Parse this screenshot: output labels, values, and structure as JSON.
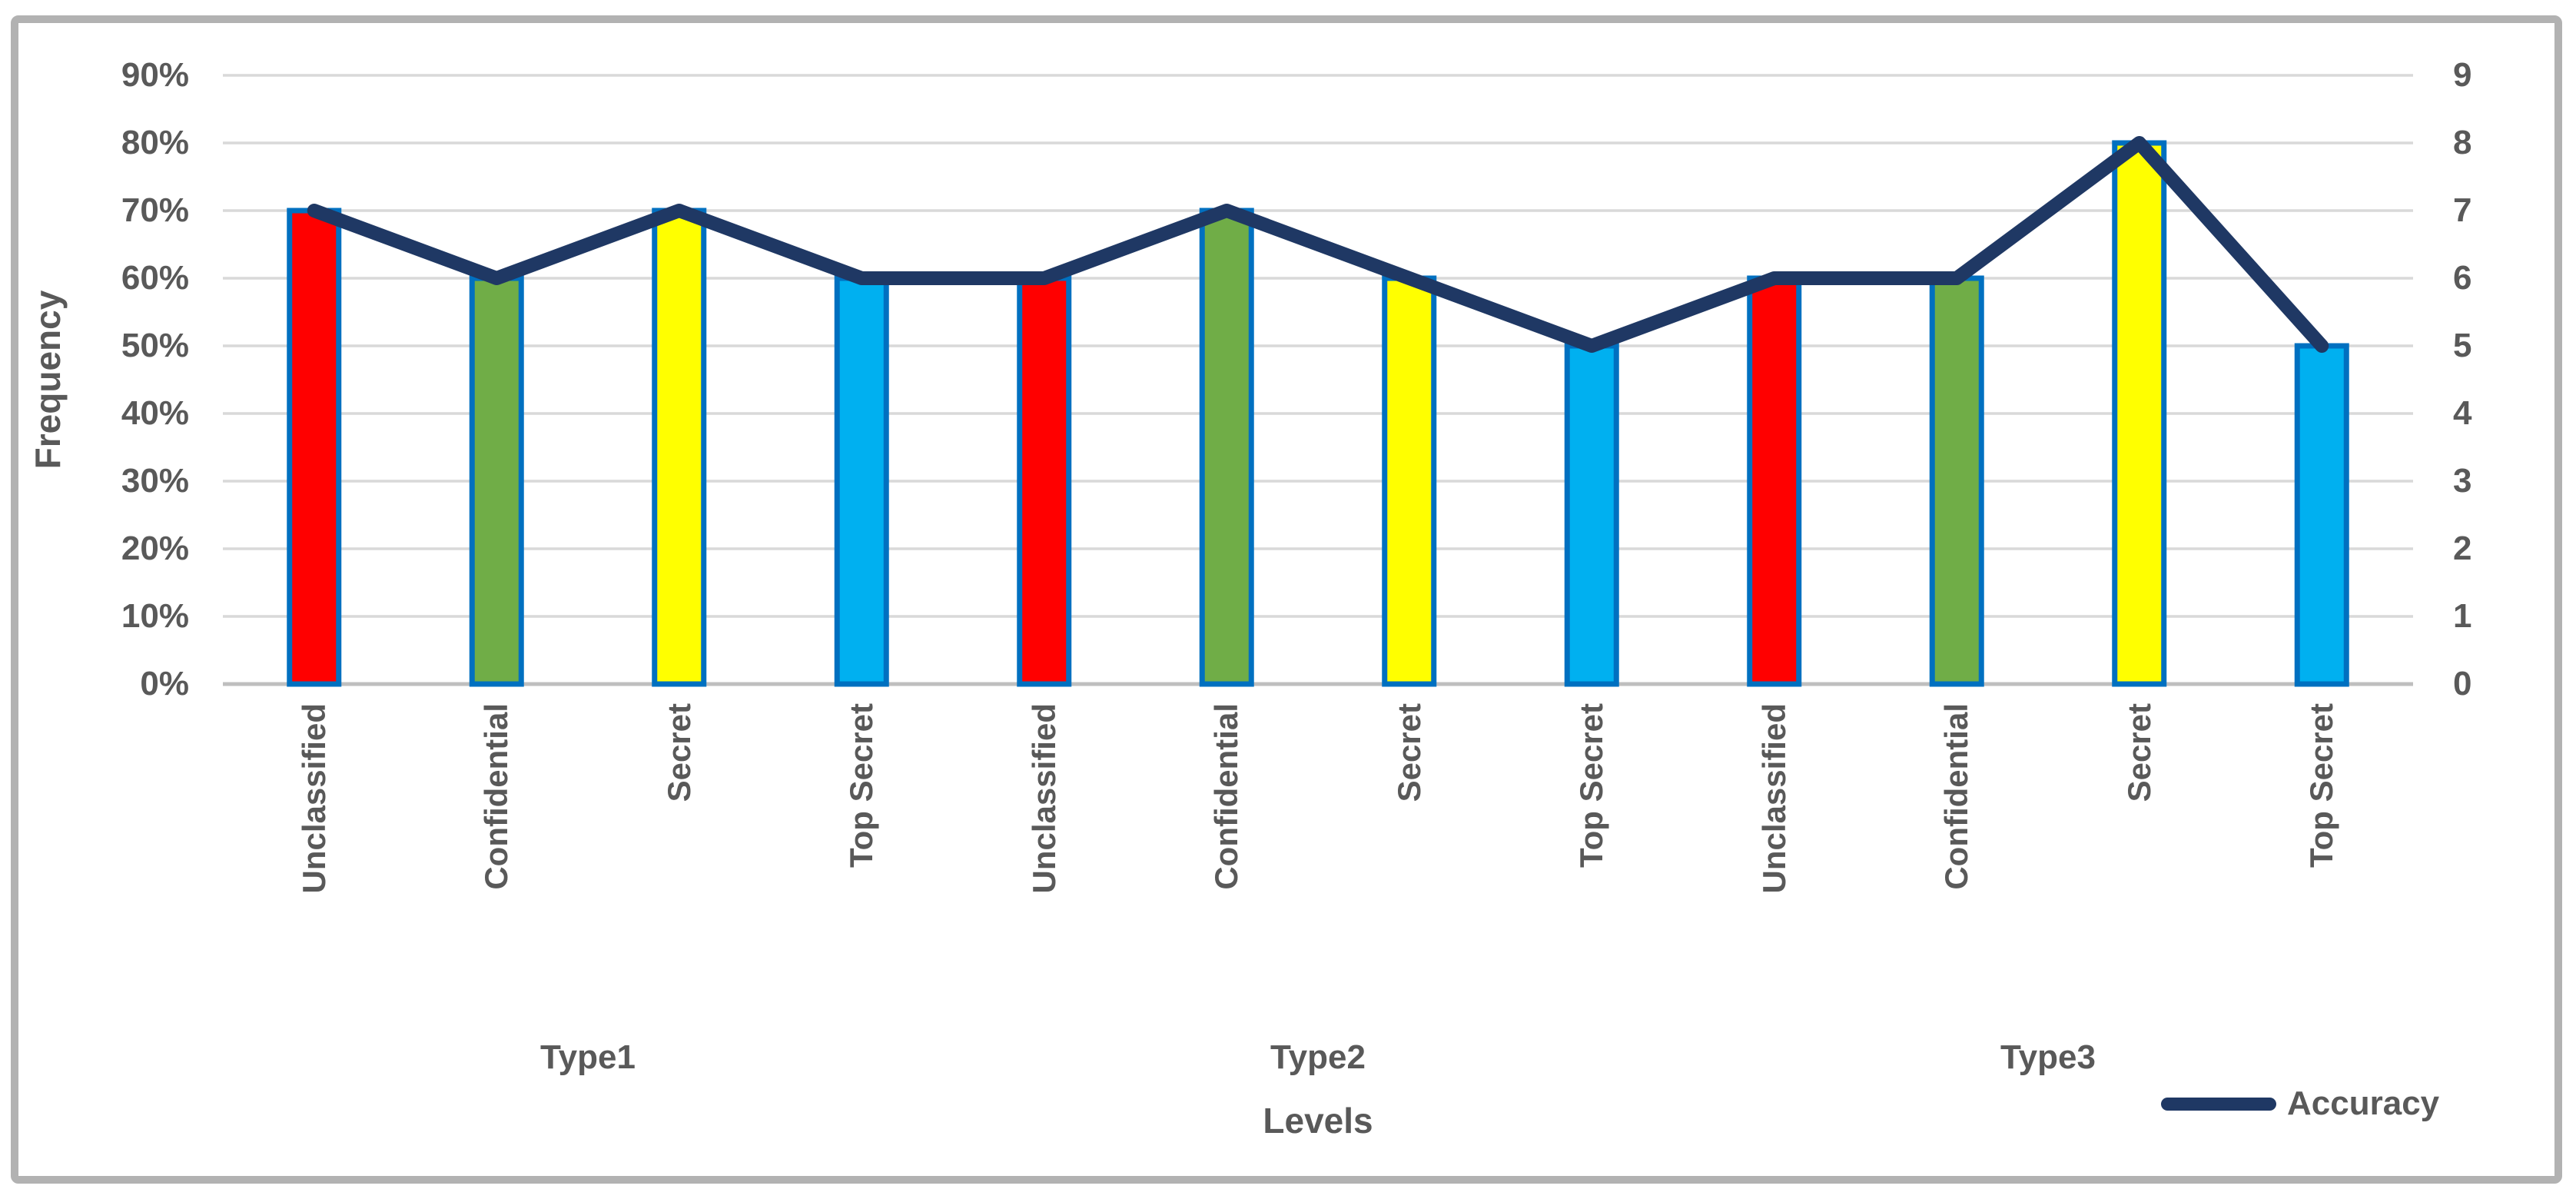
{
  "chart_data": {
    "type": "bar+line",
    "categories": [
      "Unclassified",
      "Confidential",
      "Secret",
      "Top Secret",
      "Unclassified",
      "Confidential",
      "Secret",
      "Top Secret",
      "Unclassified",
      "Confidential",
      "Secret",
      "Top Secret"
    ],
    "category_groups": [
      {
        "label": "Type1"
      },
      {
        "label": "Type2"
      },
      {
        "label": "Type3"
      }
    ],
    "series": [
      {
        "name": "Frequency",
        "type": "bar",
        "axis": "left",
        "values": [
          70,
          60,
          70,
          60,
          60,
          70,
          60,
          50,
          60,
          60,
          80,
          50
        ],
        "unit": "%"
      },
      {
        "name": "Accuracy",
        "type": "line",
        "axis": "right",
        "values": [
          7,
          6,
          7,
          6,
          6,
          7,
          6,
          5,
          6,
          6,
          8,
          5
        ],
        "color": "#1F3864"
      }
    ],
    "left_axis": {
      "label": "Frequency",
      "min": 0,
      "max": 90,
      "step": 10,
      "tick_labels": [
        "0%",
        "10%",
        "20%",
        "30%",
        "40%",
        "50%",
        "60%",
        "70%",
        "80%",
        "90%"
      ]
    },
    "right_axis": {
      "min": 0,
      "max": 9,
      "step": 1,
      "tick_labels": [
        "0",
        "1",
        "2",
        "3",
        "4",
        "5",
        "6",
        "7",
        "8",
        "9"
      ]
    },
    "x_axis": {
      "label": "Levels"
    },
    "legend": {
      "position": "bottom-right",
      "entries": [
        {
          "label": "Accuracy",
          "color": "#1F3864"
        }
      ]
    },
    "grid": true,
    "colors": {
      "bar_fill_by_level": {
        "Unclassified": "#FF0000",
        "Confidential": "#70AD47",
        "Secret": "#FFFF00",
        "Top Secret": "#00B0F0"
      },
      "bar_border": "#0070C0",
      "line": "#1F3864",
      "gridline": "#D9D9D9",
      "baseline": "#BFBFBF",
      "axis_text": "#595959",
      "frame_border": "#B2B2B2",
      "background": "#FFFFFF"
    }
  }
}
